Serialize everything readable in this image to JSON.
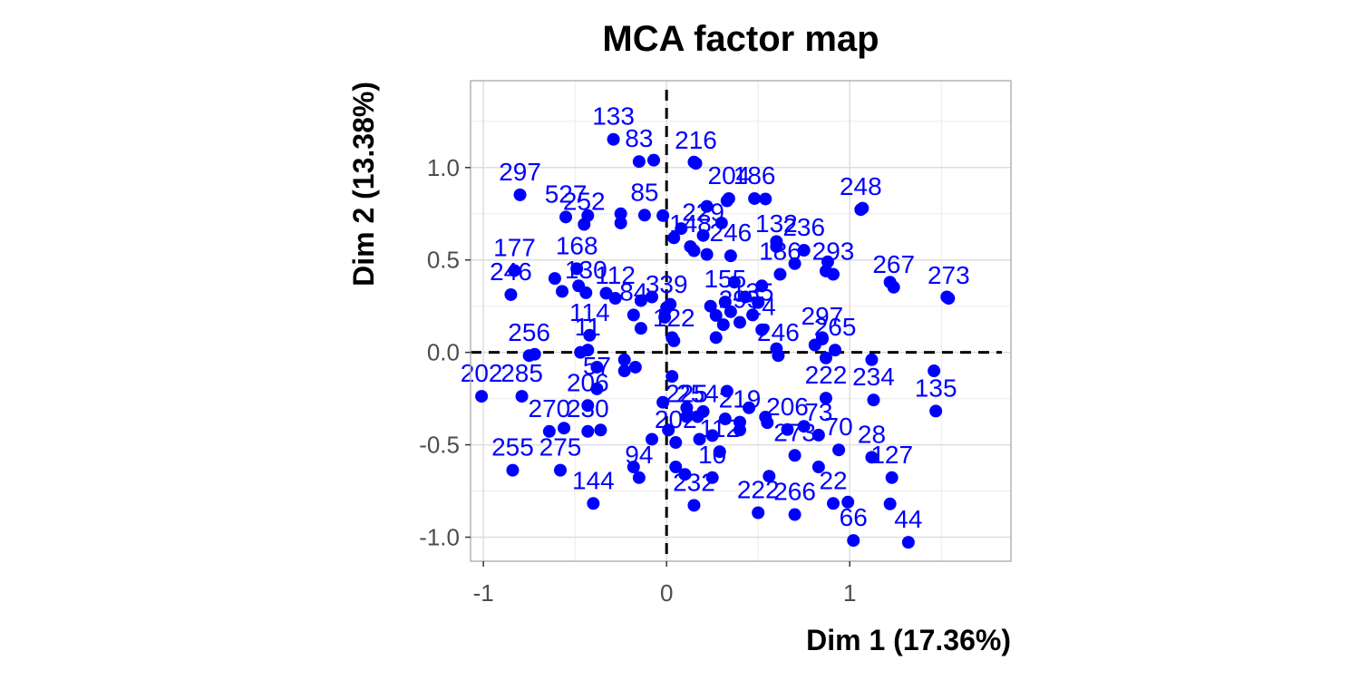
{
  "chart_data": {
    "type": "scatter",
    "title": "MCA factor map",
    "xlabel": "Dim 1 (17.36%)",
    "ylabel": "Dim 2 (13.38%)",
    "xlim": [
      -1.07,
      1.88
    ],
    "ylim": [
      -1.13,
      1.47
    ],
    "xticks": [
      -1,
      0,
      1
    ],
    "xtick_labels": [
      "-1",
      "0",
      "1"
    ],
    "yticks": [
      -1.0,
      -0.5,
      0.0,
      0.5,
      1.0
    ],
    "ytick_labels": [
      "-1.0",
      "-0.5",
      "0.0",
      "0.5",
      "1.0"
    ],
    "grid": true,
    "reference_lines": {
      "x": 0,
      "y": 0,
      "style": "dashed"
    },
    "point_color": "#0000ff",
    "points": [
      {
        "label": "133",
        "x": -0.29,
        "y": 1.28
      },
      {
        "label": "83",
        "x": -0.15,
        "y": 1.16
      },
      {
        "label": "216",
        "x": 0.16,
        "y": 1.15
      },
      {
        "label": "297",
        "x": -0.8,
        "y": 0.98
      },
      {
        "label": "204",
        "x": 0.34,
        "y": 0.96
      },
      {
        "label": "186",
        "x": 0.48,
        "y": 0.96
      },
      {
        "label": "248",
        "x": 1.06,
        "y": 0.9
      },
      {
        "label": "85",
        "x": -0.12,
        "y": 0.87
      },
      {
        "label": "527",
        "x": -0.55,
        "y": 0.86
      },
      {
        "label": "252",
        "x": -0.45,
        "y": 0.82
      },
      {
        "label": "229",
        "x": 0.2,
        "y": 0.76
      },
      {
        "label": "132",
        "x": 0.6,
        "y": 0.7
      },
      {
        "label": "236",
        "x": 0.75,
        "y": 0.68
      },
      {
        "label": "148",
        "x": 0.13,
        "y": 0.7
      },
      {
        "label": "246",
        "x": 0.35,
        "y": 0.65
      },
      {
        "label": "168",
        "x": -0.49,
        "y": 0.58
      },
      {
        "label": "177",
        "x": -0.83,
        "y": 0.57
      },
      {
        "label": "186",
        "x": 0.62,
        "y": 0.55
      },
      {
        "label": "293",
        "x": 0.91,
        "y": 0.55
      },
      {
        "label": "267",
        "x": 1.24,
        "y": 0.48
      },
      {
        "label": "273",
        "x": 1.54,
        "y": 0.42
      },
      {
        "label": "246",
        "x": -0.85,
        "y": 0.44
      },
      {
        "label": "130",
        "x": -0.44,
        "y": 0.45
      },
      {
        "label": "112",
        "x": -0.28,
        "y": 0.42
      },
      {
        "label": "339",
        "x": 0.0,
        "y": 0.37
      },
      {
        "label": "155",
        "x": 0.32,
        "y": 0.4
      },
      {
        "label": "135",
        "x": 0.47,
        "y": 0.33
      },
      {
        "label": "84",
        "x": -0.18,
        "y": 0.33
      },
      {
        "label": "297",
        "x": 0.85,
        "y": 0.2
      },
      {
        "label": "24",
        "x": 0.52,
        "y": 0.25
      },
      {
        "label": "295",
        "x": 0.4,
        "y": 0.29
      },
      {
        "label": "114",
        "x": -0.42,
        "y": 0.22
      },
      {
        "label": "122",
        "x": 0.04,
        "y": 0.19
      },
      {
        "label": "265",
        "x": 0.92,
        "y": 0.14
      },
      {
        "label": "246",
        "x": 0.61,
        "y": 0.11
      },
      {
        "label": "256",
        "x": -0.75,
        "y": 0.11
      },
      {
        "label": "11",
        "x": -0.43,
        "y": 0.14
      },
      {
        "label": "222",
        "x": 0.87,
        "y": -0.12
      },
      {
        "label": "234",
        "x": 1.13,
        "y": -0.13
      },
      {
        "label": "135",
        "x": 1.47,
        "y": -0.19
      },
      {
        "label": "202",
        "x": -1.01,
        "y": -0.11
      },
      {
        "label": "285",
        "x": -0.79,
        "y": -0.11
      },
      {
        "label": "57",
        "x": -0.38,
        "y": -0.07
      },
      {
        "label": "206",
        "x": -0.43,
        "y": -0.16
      },
      {
        "label": "225",
        "x": 0.11,
        "y": -0.22
      },
      {
        "label": "254",
        "x": 0.17,
        "y": -0.22
      },
      {
        "label": "219",
        "x": 0.4,
        "y": -0.25
      },
      {
        "label": "206",
        "x": 0.66,
        "y": -0.29
      },
      {
        "label": "73",
        "x": 0.83,
        "y": -0.32
      },
      {
        "label": "270",
        "x": -0.64,
        "y": -0.3
      },
      {
        "label": "230",
        "x": -0.43,
        "y": -0.3
      },
      {
        "label": "202",
        "x": 0.05,
        "y": -0.36
      },
      {
        "label": "112",
        "x": 0.29,
        "y": -0.41
      },
      {
        "label": "273",
        "x": 0.7,
        "y": -0.43
      },
      {
        "label": "70",
        "x": 0.94,
        "y": -0.4
      },
      {
        "label": "28",
        "x": 1.12,
        "y": -0.44
      },
      {
        "label": "127",
        "x": 1.23,
        "y": -0.55
      },
      {
        "label": "255",
        "x": -0.84,
        "y": -0.51
      },
      {
        "label": "275",
        "x": -0.58,
        "y": -0.51
      },
      {
        "label": "94",
        "x": -0.15,
        "y": -0.55
      },
      {
        "label": "10",
        "x": 0.25,
        "y": -0.55
      },
      {
        "label": "22",
        "x": 0.91,
        "y": -0.69
      },
      {
        "label": "144",
        "x": -0.4,
        "y": -0.69
      },
      {
        "label": "232",
        "x": 0.15,
        "y": -0.7
      },
      {
        "label": "222",
        "x": 0.5,
        "y": -0.74
      },
      {
        "label": "266",
        "x": 0.7,
        "y": -0.75
      },
      {
        "label": "66",
        "x": 1.02,
        "y": -0.89
      },
      {
        "label": "44",
        "x": 1.32,
        "y": -0.9
      }
    ],
    "extra_points": [
      {
        "x": -0.07,
        "y": 1.04
      },
      {
        "x": 0.15,
        "y": 1.03
      },
      {
        "x": 0.54,
        "y": 0.83
      },
      {
        "x": 1.07,
        "y": 0.78
      },
      {
        "x": -0.25,
        "y": 0.75
      },
      {
        "x": -0.43,
        "y": 0.74
      },
      {
        "x": -0.25,
        "y": 0.7
      },
      {
        "x": -0.02,
        "y": 0.74
      },
      {
        "x": 0.33,
        "y": 0.82
      },
      {
        "x": 0.22,
        "y": 0.79
      },
      {
        "x": 0.04,
        "y": 0.62
      },
      {
        "x": 0.08,
        "y": 0.67
      },
      {
        "x": 0.3,
        "y": 0.7
      },
      {
        "x": 0.15,
        "y": 0.55
      },
      {
        "x": 0.22,
        "y": 0.53
      },
      {
        "x": 0.6,
        "y": 0.6
      },
      {
        "x": 0.7,
        "y": 0.48
      },
      {
        "x": 0.87,
        "y": 0.44
      },
      {
        "x": 0.88,
        "y": 0.49
      },
      {
        "x": 1.22,
        "y": 0.38
      },
      {
        "x": 1.53,
        "y": 0.3
      },
      {
        "x": -0.61,
        "y": 0.4
      },
      {
        "x": -0.57,
        "y": 0.33
      },
      {
        "x": -0.48,
        "y": 0.36
      },
      {
        "x": -0.33,
        "y": 0.32
      },
      {
        "x": -0.14,
        "y": 0.28
      },
      {
        "x": -0.08,
        "y": 0.3
      },
      {
        "x": 0.02,
        "y": 0.26
      },
      {
        "x": -0.01,
        "y": 0.19
      },
      {
        "x": 0.24,
        "y": 0.25
      },
      {
        "x": 0.35,
        "y": 0.22
      },
      {
        "x": 0.43,
        "y": 0.3
      },
      {
        "x": 0.52,
        "y": 0.36
      },
      {
        "x": 0.5,
        "y": 0.27
      },
      {
        "x": 0.27,
        "y": 0.2
      },
      {
        "x": 0.37,
        "y": 0.38
      },
      {
        "x": 0.31,
        "y": 0.15
      },
      {
        "x": 0.27,
        "y": 0.08
      },
      {
        "x": 0.6,
        "y": 0.02
      },
      {
        "x": 0.81,
        "y": 0.04
      },
      {
        "x": 0.85,
        "y": 0.08
      },
      {
        "x": -0.14,
        "y": 0.13
      },
      {
        "x": -0.47,
        "y": 0.0
      },
      {
        "x": -0.72,
        "y": -0.01
      },
      {
        "x": 0.03,
        "y": 0.08
      },
      {
        "x": -0.23,
        "y": -0.04
      },
      {
        "x": 0.87,
        "y": -0.03
      },
      {
        "x": 1.12,
        "y": -0.04
      },
      {
        "x": 1.46,
        "y": -0.1
      },
      {
        "x": -0.38,
        "y": -0.08
      },
      {
        "x": -0.23,
        "y": -0.1
      },
      {
        "x": -0.17,
        "y": -0.08
      },
      {
        "x": 0.03,
        "y": -0.13
      },
      {
        "x": -0.02,
        "y": -0.27
      },
      {
        "x": 0.11,
        "y": -0.3
      },
      {
        "x": 0.2,
        "y": -0.32
      },
      {
        "x": 0.32,
        "y": -0.36
      },
      {
        "x": 0.45,
        "y": -0.3
      },
      {
        "x": 0.54,
        "y": -0.35
      },
      {
        "x": -0.36,
        "y": -0.42
      },
      {
        "x": -0.56,
        "y": -0.41
      },
      {
        "x": -0.08,
        "y": -0.47
      },
      {
        "x": -0.18,
        "y": -0.62
      },
      {
        "x": 0.25,
        "y": -0.45
      },
      {
        "x": 0.4,
        "y": -0.42
      },
      {
        "x": 0.55,
        "y": -0.38
      },
      {
        "x": 0.75,
        "y": -0.4
      },
      {
        "x": 0.05,
        "y": -0.62
      },
      {
        "x": 0.1,
        "y": -0.66
      },
      {
        "x": 0.56,
        "y": -0.67
      },
      {
        "x": 0.83,
        "y": -0.62
      },
      {
        "x": 0.99,
        "y": -0.81
      },
      {
        "x": 1.22,
        "y": -0.82
      },
      {
        "x": 0.18,
        "y": -0.47
      },
      {
        "x": 0.01,
        "y": -0.42
      },
      {
        "x": 0.33,
        "y": -0.21
      }
    ]
  }
}
